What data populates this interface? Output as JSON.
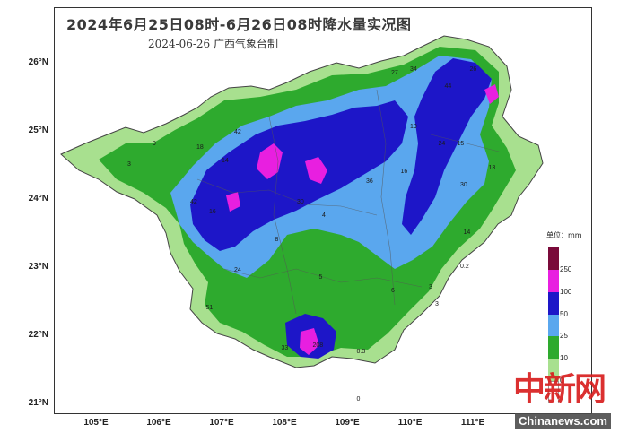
{
  "map": {
    "title": "2024年6月25日08时-6月26日08时降水量实况图",
    "subtitle": "2024-06-26  广西气象台制",
    "latitude_labels": [
      {
        "text": "26°N",
        "lat": 26
      },
      {
        "text": "25°N",
        "lat": 25
      },
      {
        "text": "24°N",
        "lat": 24
      },
      {
        "text": "23°N",
        "lat": 23
      },
      {
        "text": "22°N",
        "lat": 22
      },
      {
        "text": "21°N",
        "lat": 21
      }
    ],
    "longitude_labels": [
      {
        "text": "105°E",
        "lon": 105
      },
      {
        "text": "106°E",
        "lon": 106
      },
      {
        "text": "107°E",
        "lon": 107
      },
      {
        "text": "108°E",
        "lon": 108
      },
      {
        "text": "109°E",
        "lon": 109
      },
      {
        "text": "110°E",
        "lon": 110
      },
      {
        "text": "111°E",
        "lon": 111
      }
    ],
    "station_values": [
      {
        "text": "42",
        "lon": 107.2,
        "lat": 25.02
      },
      {
        "text": "18",
        "lon": 106.6,
        "lat": 24.8
      },
      {
        "text": "9",
        "lon": 105.9,
        "lat": 24.85
      },
      {
        "text": "3",
        "lon": 105.5,
        "lat": 24.55
      },
      {
        "text": "14",
        "lon": 107.0,
        "lat": 24.6
      },
      {
        "text": "42",
        "lon": 106.5,
        "lat": 24.0
      },
      {
        "text": "16",
        "lon": 106.8,
        "lat": 23.85
      },
      {
        "text": "30",
        "lon": 108.2,
        "lat": 24.0
      },
      {
        "text": "36",
        "lon": 109.3,
        "lat": 24.3
      },
      {
        "text": "16",
        "lon": 109.85,
        "lat": 24.45
      },
      {
        "text": "27",
        "lon": 109.7,
        "lat": 25.9
      },
      {
        "text": "34",
        "lon": 110.0,
        "lat": 25.95
      },
      {
        "text": "26",
        "lon": 110.95,
        "lat": 25.95
      },
      {
        "text": "44",
        "lon": 110.55,
        "lat": 25.7
      },
      {
        "text": "19",
        "lon": 110.0,
        "lat": 25.1
      },
      {
        "text": "24",
        "lon": 110.45,
        "lat": 24.85
      },
      {
        "text": "15",
        "lon": 110.75,
        "lat": 24.85
      },
      {
        "text": "30",
        "lon": 110.8,
        "lat": 24.25
      },
      {
        "text": "13",
        "lon": 111.25,
        "lat": 24.5
      },
      {
        "text": "14",
        "lon": 110.85,
        "lat": 23.55
      },
      {
        "text": "0.2",
        "lon": 110.8,
        "lat": 23.05
      },
      {
        "text": "4",
        "lon": 108.6,
        "lat": 23.8
      },
      {
        "text": "8",
        "lon": 107.85,
        "lat": 23.45
      },
      {
        "text": "24",
        "lon": 107.2,
        "lat": 23.0
      },
      {
        "text": "5",
        "lon": 108.55,
        "lat": 22.9
      },
      {
        "text": "6",
        "lon": 109.7,
        "lat": 22.7
      },
      {
        "text": "3",
        "lon": 110.3,
        "lat": 22.75
      },
      {
        "text": "3",
        "lon": 110.4,
        "lat": 22.5
      },
      {
        "text": "51",
        "lon": 106.75,
        "lat": 22.45
      },
      {
        "text": "33",
        "lon": 107.95,
        "lat": 21.85
      },
      {
        "text": "208",
        "lon": 108.45,
        "lat": 21.9
      },
      {
        "text": "0.3",
        "lon": 109.15,
        "lat": 21.8
      },
      {
        "text": "0",
        "lon": 109.15,
        "lat": 21.1
      }
    ]
  },
  "legend": {
    "unit_label": "单位：mm",
    "items": [
      {
        "label": "250",
        "color": "#7a0a3a"
      },
      {
        "label": "100",
        "color": "#e81fe0"
      },
      {
        "label": "50",
        "color": "#1d16c8"
      },
      {
        "label": "25",
        "color": "#5aa7ee"
      },
      {
        "label": "10",
        "color": "#2eaa2e"
      },
      {
        "label": "0",
        "color": "#a8e08f"
      }
    ],
    "base_color": "#ffffff"
  },
  "watermark": {
    "cn_text": "中新网",
    "en_text": "Chinanews.com"
  }
}
